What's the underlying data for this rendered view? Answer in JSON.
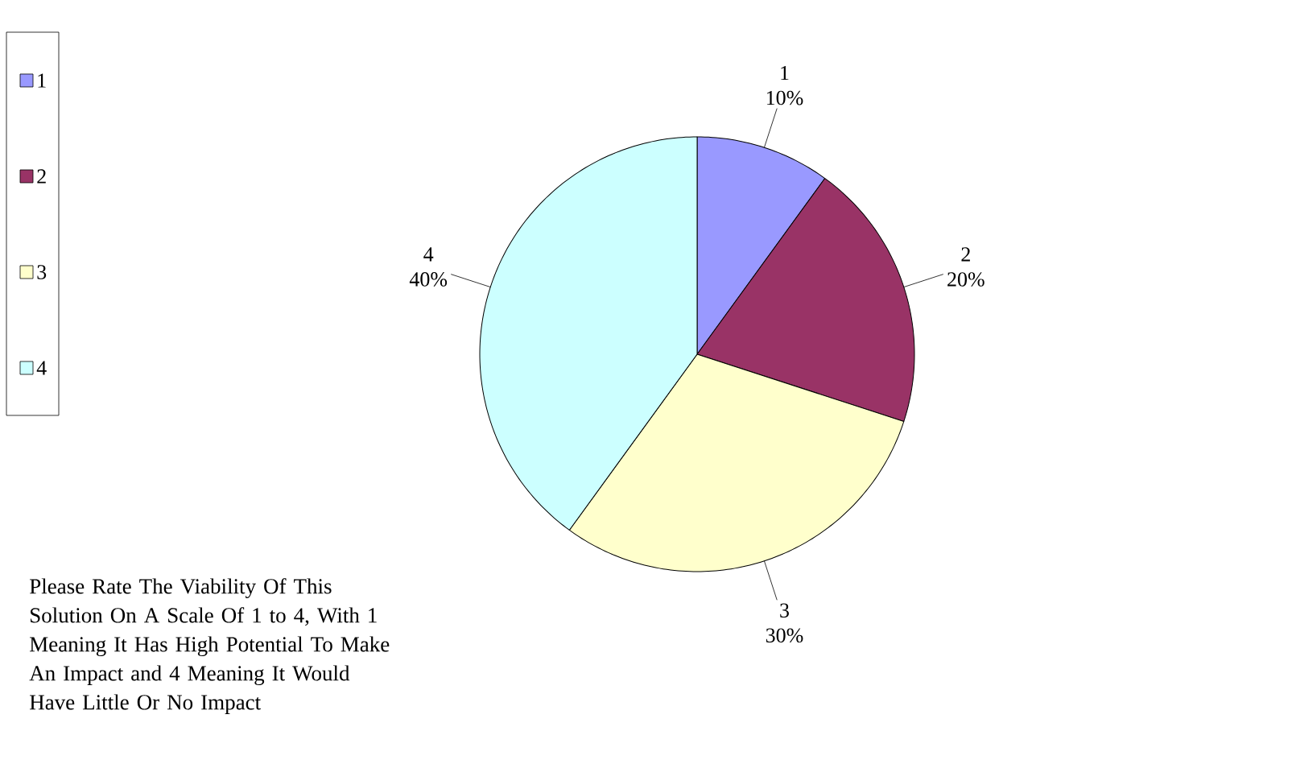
{
  "chart_data": {
    "type": "pie",
    "categories": [
      "1",
      "2",
      "3",
      "4"
    ],
    "values": [
      10,
      20,
      30,
      40
    ],
    "colors": [
      "#9999ff",
      "#993366",
      "#ffffcc",
      "#ccffff"
    ],
    "value_labels": [
      "10%",
      "20%",
      "30%",
      "40%"
    ],
    "legend": "left",
    "annotations": [
      "Please Rate The Viability Of This Solution On A Scale Of 1 to 4, With 1 Meaning It Has High Potential To Make An Impact and 4 Meaning It Would Have Little Or No Impact"
    ]
  }
}
